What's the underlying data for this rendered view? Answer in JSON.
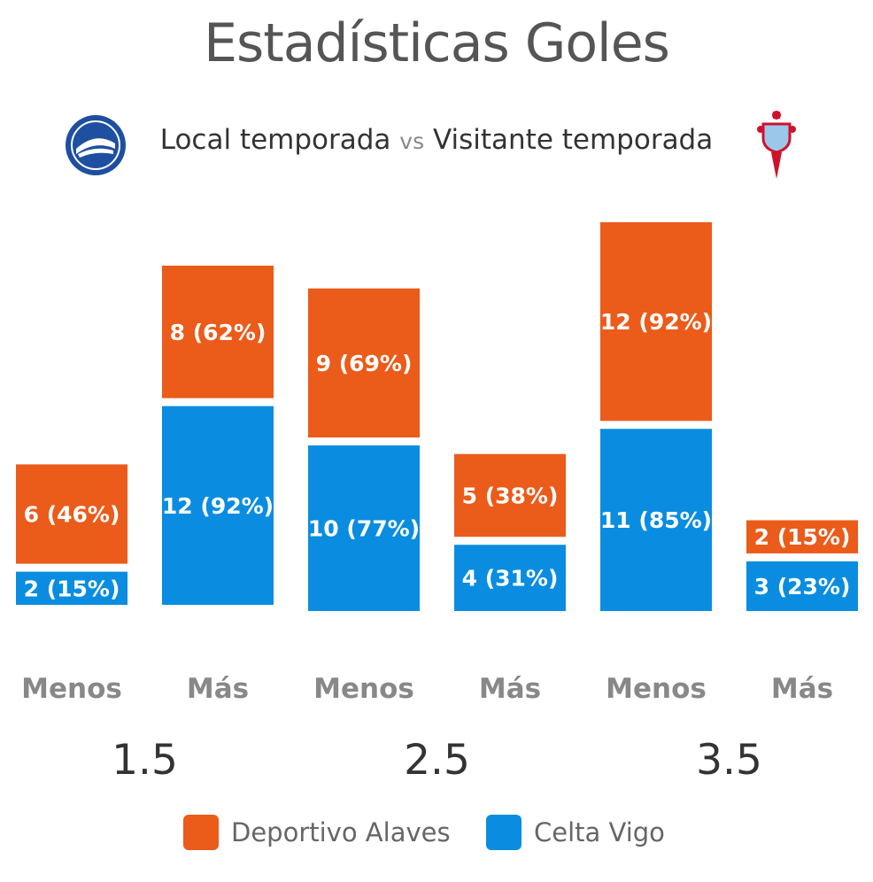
{
  "colors": {
    "home": "#EB5B1A",
    "away": "#0A8DE0"
  },
  "icons": {
    "home_logo": "deportivo-alaves-crest-icon",
    "away_logo": "celta-vigo-crest-icon"
  },
  "chart_data": {
    "type": "bar",
    "title": "Estadísticas Goles",
    "subtitle": {
      "home": "Local temporada",
      "vs": "vs",
      "away": "Visitante temporada"
    },
    "groups": [
      "1.5",
      "2.5",
      "3.5"
    ],
    "categories": [
      "Menos",
      "Más",
      "Menos",
      "Más",
      "Menos",
      "Más"
    ],
    "series": [
      {
        "name": "Deportivo Alaves",
        "values": [
          6,
          8,
          9,
          5,
          12,
          2
        ],
        "labels": [
          "6 (46%)",
          "8 (62%)",
          "9 (69%)",
          "5 (38%)",
          "12 (92%)",
          "2 (15%)"
        ]
      },
      {
        "name": "Celta Vigo",
        "values": [
          2,
          12,
          10,
          4,
          11,
          3
        ],
        "labels": [
          "2 (15%)",
          "12 (92%)",
          "10 (77%)",
          "4 (31%)",
          "11 (85%)",
          "3 (23%)"
        ]
      }
    ],
    "legend": [
      "Deportivo Alaves",
      "Celta Vigo"
    ],
    "legend_position": "bottom-center"
  }
}
